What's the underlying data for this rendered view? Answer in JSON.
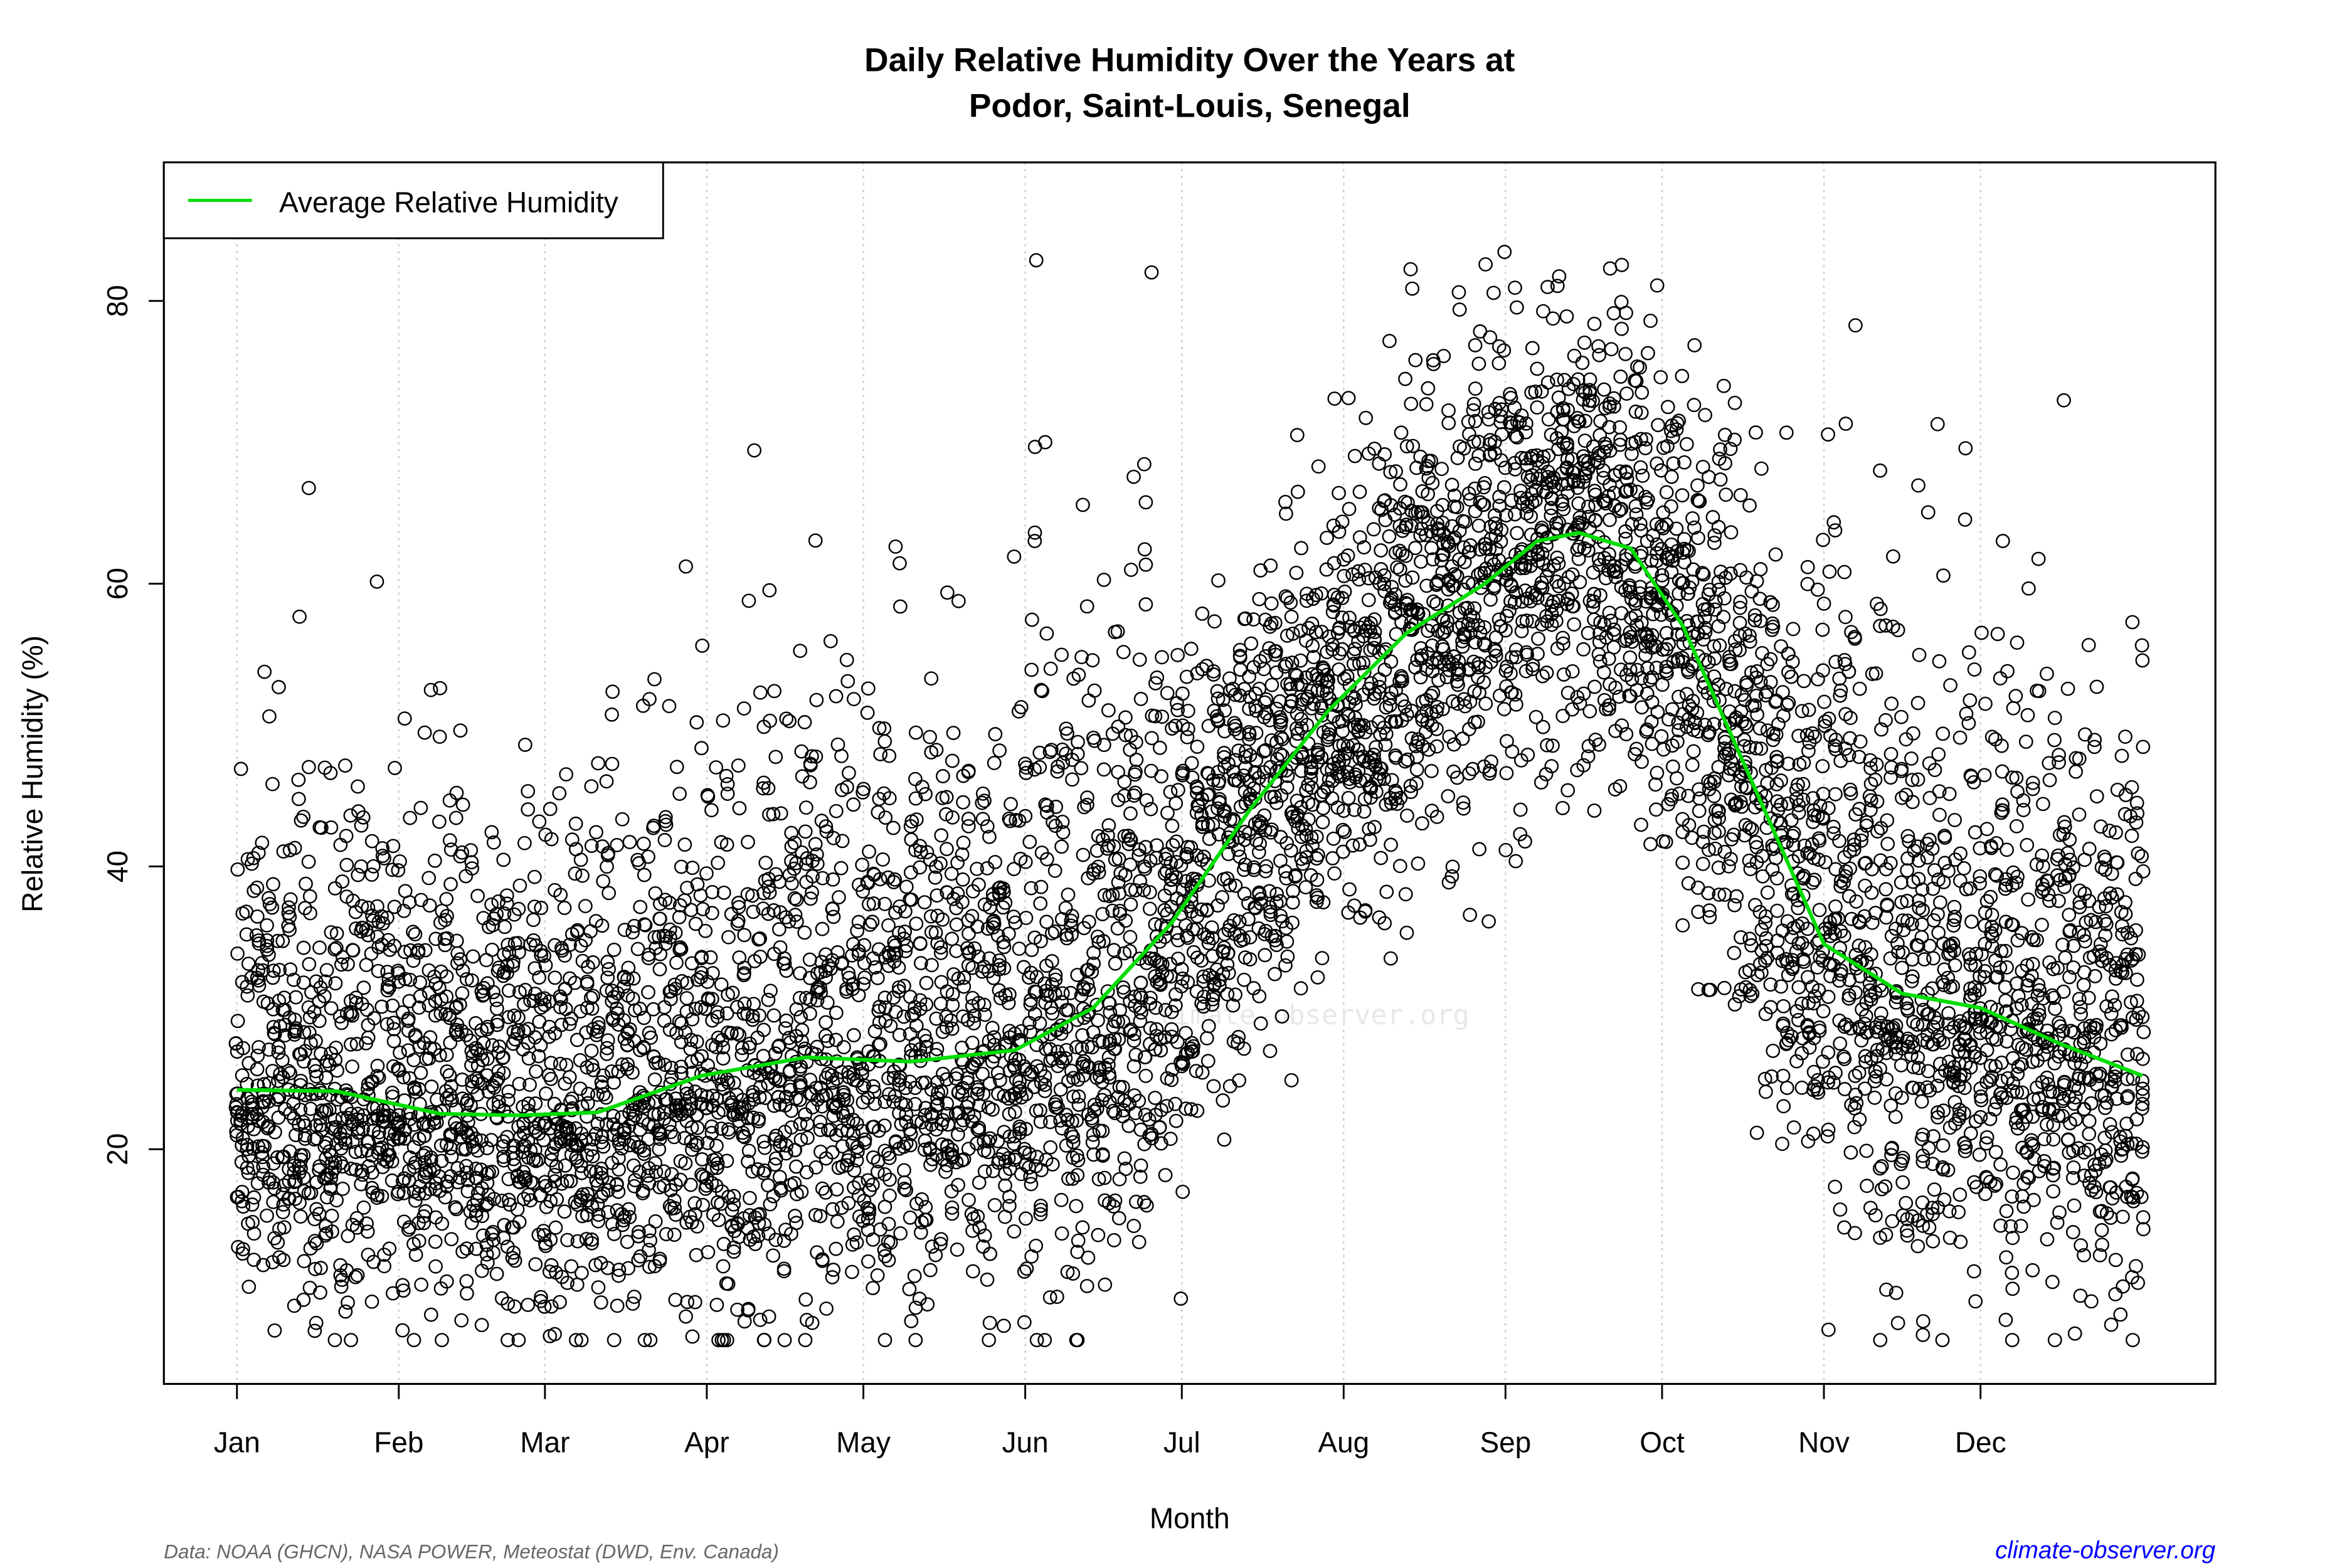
{
  "chart_data": {
    "type": "scatter",
    "title_line1": "Daily Relative Humidity Over the Years at",
    "title_line2": "Podor, Saint-Louis, Senegal",
    "xlabel": "Month",
    "ylabel": "Relative Humidity  (%)",
    "x_ticks": [
      "Jan",
      "Feb",
      "Mar",
      "Apr",
      "May",
      "Jun",
      "Jul",
      "Aug",
      "Sep",
      "Oct",
      "Nov",
      "Dec"
    ],
    "x_tick_days": [
      1,
      32,
      60,
      91,
      121,
      152,
      182,
      213,
      244,
      274,
      305,
      335
    ],
    "y_ticks": [
      20,
      40,
      60,
      80
    ],
    "ylim": [
      3.4,
      89.8
    ],
    "xlim_days": [
      -13,
      380
    ],
    "grid": "vertical dotted at month ticks",
    "legend": {
      "label": "Average Relative Humidity",
      "position": "top-left",
      "color": "#00dd00"
    },
    "average_curve": {
      "day": [
        1,
        20,
        40,
        55,
        70,
        90,
        110,
        130,
        150,
        165,
        180,
        195,
        210,
        225,
        240,
        250,
        258,
        268,
        278,
        290,
        305,
        320,
        335,
        350,
        366
      ],
      "value": [
        24.2,
        24.1,
        22.5,
        22.4,
        22.6,
        25.2,
        26.5,
        26.2,
        27,
        30,
        36,
        44,
        51,
        56.5,
        60,
        63,
        63.6,
        62.5,
        57,
        47,
        34.5,
        31,
        30,
        27.5,
        25.2
      ]
    },
    "points_spread_sd_by_month": [
      7,
      7,
      7,
      8,
      8,
      9,
      8,
      8,
      8,
      10,
      9,
      8
    ],
    "points_min": 6.5,
    "points_max": 86.5,
    "point_color": "#000000"
  },
  "footer": {
    "source": "Data: NOAA (GHCN), NASA POWER, Meteostat (DWD, Env. Canada)",
    "site": "climate-observer.org",
    "site_color": "#0000ff"
  },
  "watermark": {
    "text": "climate-observer.org"
  }
}
